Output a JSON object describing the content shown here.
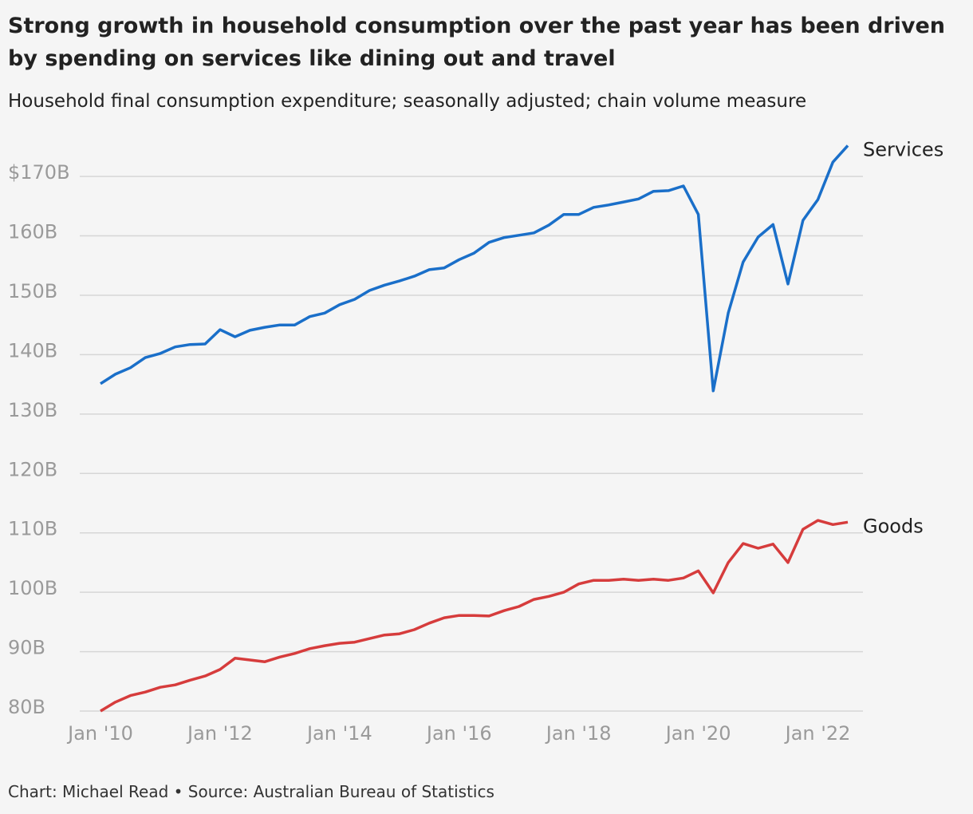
{
  "chart_data": {
    "type": "line",
    "title": "Strong growth in household consumption over the past year has been driven by spending on services like dining out and travel",
    "subtitle": "Household final consumption expenditure; seasonally adjusted; chain volume measure",
    "source": "Chart: Michael Read • Source: Australian Bureau of Statistics",
    "x": [
      "2010-01",
      "2010-04",
      "2010-07",
      "2010-10",
      "2011-01",
      "2011-04",
      "2011-07",
      "2011-10",
      "2012-01",
      "2012-04",
      "2012-07",
      "2012-10",
      "2013-01",
      "2013-04",
      "2013-07",
      "2013-10",
      "2014-01",
      "2014-04",
      "2014-07",
      "2014-10",
      "2015-01",
      "2015-04",
      "2015-07",
      "2015-10",
      "2016-01",
      "2016-04",
      "2016-07",
      "2016-10",
      "2017-01",
      "2017-04",
      "2017-07",
      "2017-10",
      "2018-01",
      "2018-04",
      "2018-07",
      "2018-10",
      "2019-01",
      "2019-04",
      "2019-07",
      "2019-10",
      "2020-01",
      "2020-04",
      "2020-07",
      "2020-10",
      "2021-01",
      "2021-04",
      "2021-07",
      "2021-10",
      "2022-01",
      "2022-04",
      "2022-07"
    ],
    "series": [
      {
        "name": "Services",
        "color": "#1a6fc9",
        "values": [
          135.1,
          136.7,
          137.8,
          139.5,
          140.2,
          141.3,
          141.7,
          141.8,
          144.2,
          143.0,
          144.1,
          144.6,
          145.0,
          145.0,
          146.4,
          147.0,
          148.4,
          149.3,
          150.8,
          151.7,
          152.4,
          153.2,
          154.3,
          154.6,
          156.0,
          157.1,
          158.9,
          159.7,
          160.1,
          160.5,
          161.8,
          163.6,
          163.6,
          164.8,
          165.2,
          165.7,
          166.2,
          167.5,
          167.6,
          168.4,
          163.6,
          133.9,
          147.0,
          155.6,
          159.8,
          161.9,
          151.9,
          162.6,
          166.1,
          172.4,
          175.2
        ]
      },
      {
        "name": "Goods",
        "color": "#d63c3c",
        "values": [
          80.0,
          81.5,
          82.6,
          83.2,
          84.0,
          84.4,
          85.2,
          85.9,
          87.0,
          88.9,
          88.6,
          88.3,
          89.1,
          89.7,
          90.5,
          91.0,
          91.4,
          91.6,
          92.2,
          92.8,
          93.0,
          93.7,
          94.8,
          95.7,
          96.1,
          96.1,
          96.0,
          96.9,
          97.6,
          98.8,
          99.3,
          100.0,
          101.4,
          102.0,
          102.0,
          102.2,
          102.0,
          102.2,
          102.0,
          102.4,
          103.6,
          99.9,
          105.0,
          108.2,
          107.4,
          108.1,
          105.0,
          110.6,
          112.1,
          111.4,
          111.8
        ]
      }
    ],
    "xlim": [
      "2010-01",
      "2022-07"
    ],
    "xticks": [
      {
        "value": "2010-01",
        "label": "Jan '10"
      },
      {
        "value": "2012-01",
        "label": "Jan '12"
      },
      {
        "value": "2014-01",
        "label": "Jan '14"
      },
      {
        "value": "2016-01",
        "label": "Jan '16"
      },
      {
        "value": "2018-01",
        "label": "Jan '18"
      },
      {
        "value": "2020-01",
        "label": "Jan '20"
      },
      {
        "value": "2022-01",
        "label": "Jan '22"
      }
    ],
    "ylim": [
      80,
      176
    ],
    "yticks": [
      {
        "value": 80,
        "label": "80B"
      },
      {
        "value": 90,
        "label": "90B"
      },
      {
        "value": 100,
        "label": "100B"
      },
      {
        "value": 110,
        "label": "110B"
      },
      {
        "value": 120,
        "label": "120B"
      },
      {
        "value": 130,
        "label": "130B"
      },
      {
        "value": 140,
        "label": "140B"
      },
      {
        "value": 150,
        "label": "150B"
      },
      {
        "value": 160,
        "label": "160B"
      },
      {
        "value": 170,
        "label": "$170B"
      }
    ],
    "grid": true
  }
}
